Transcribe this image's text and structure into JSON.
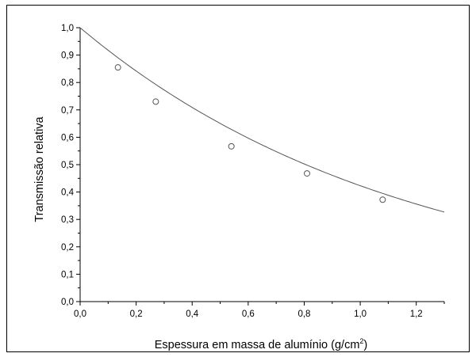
{
  "chart_data": {
    "type": "scatter",
    "title": "",
    "xlabel": "Espessura em massa de alumínio (g/cm",
    "xlabel_superscript": "2",
    "xlabel_suffix": ")",
    "ylabel": "Transmissão relativa",
    "xlim": [
      0.0,
      1.3
    ],
    "ylim": [
      0.0,
      1.0
    ],
    "x_ticks": [
      "0,0",
      "0,2",
      "0,4",
      "0,6",
      "0,8",
      "1,0",
      "1,2"
    ],
    "y_ticks": [
      "0,0",
      "0,1",
      "0,2",
      "0,3",
      "0,4",
      "0,5",
      "0,6",
      "0,7",
      "0,8",
      "0,9",
      "1,0"
    ],
    "grid": false,
    "legend": "none",
    "series": [
      {
        "marker": "open-circle",
        "x": [
          0.135,
          0.27,
          0.54,
          0.81,
          1.08
        ],
        "y": [
          0.855,
          0.73,
          0.567,
          0.468,
          0.372
        ]
      }
    ],
    "fit_curve": {
      "model": "exponential",
      "y0": 1.0,
      "attenuation_coefficient": 0.86,
      "x_range": [
        0.0,
        1.3
      ]
    },
    "colors": {
      "line": "#555555",
      "marker": "#555555",
      "axis": "#000000"
    }
  }
}
